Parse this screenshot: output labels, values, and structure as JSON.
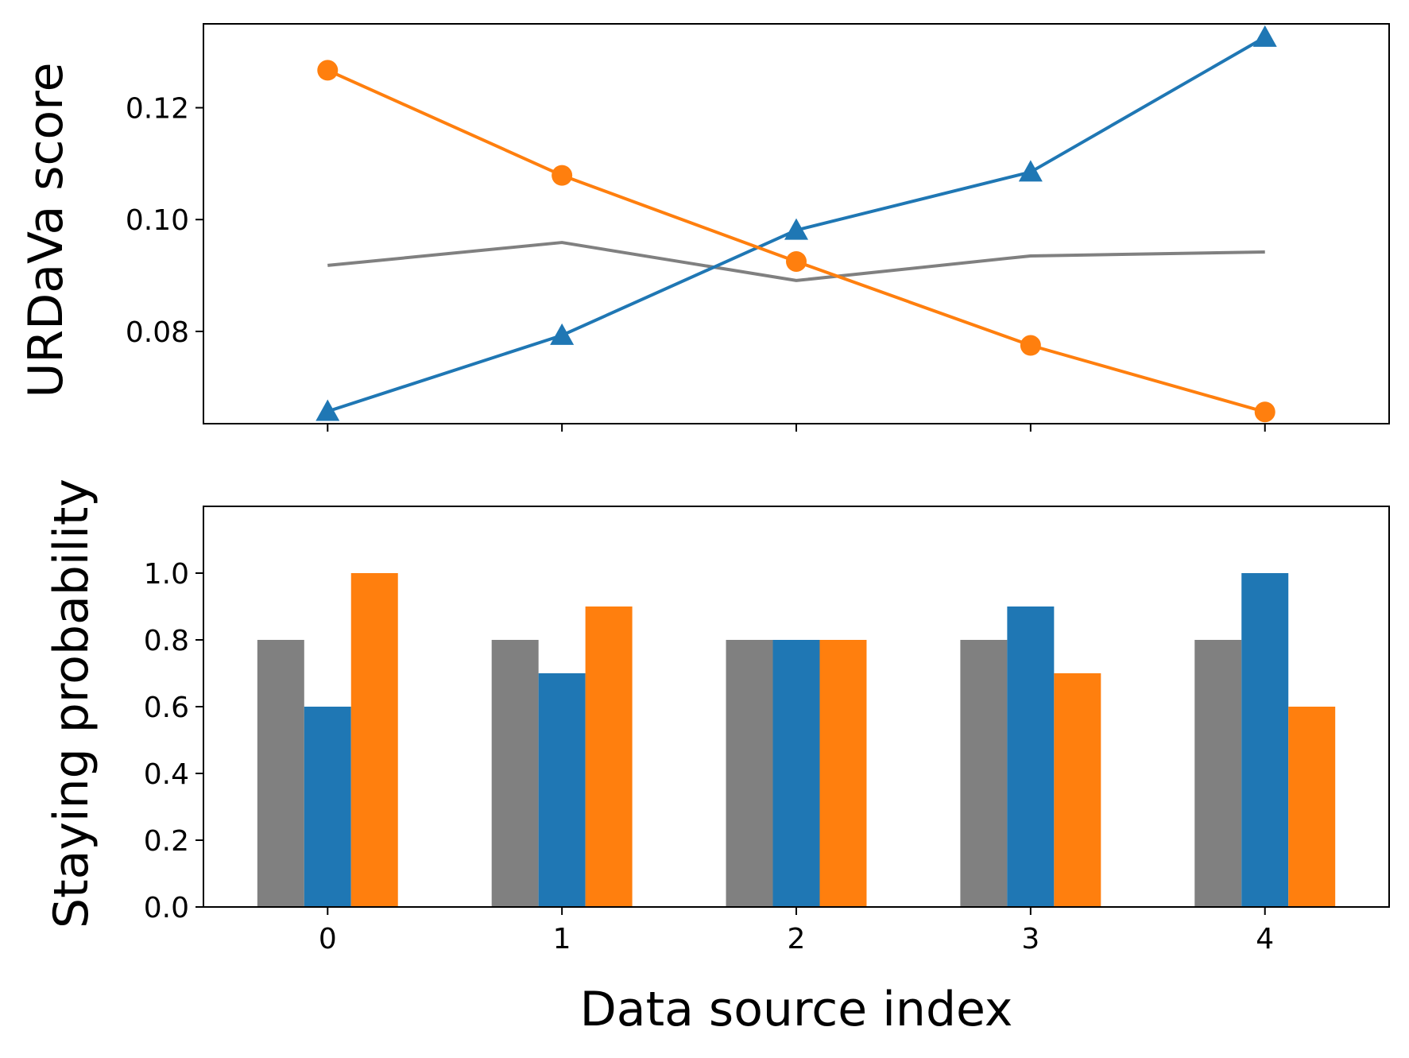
{
  "chart_data": [
    {
      "type": "line",
      "ylabel": "URDaVa score",
      "x": [
        0,
        1,
        2,
        3,
        4
      ],
      "xlim": [
        -0.53,
        4.53
      ],
      "ylim": [
        0.0635,
        0.135
      ],
      "yticks": [
        "0.08",
        "0.10",
        "0.12"
      ],
      "ytick_values": [
        0.08,
        0.1,
        0.12
      ],
      "grid": false,
      "series": [
        {
          "values": [
            0.0918,
            0.0959,
            0.0891,
            0.0935,
            0.0942
          ],
          "color": "#808080",
          "marker": "none"
        },
        {
          "values": [
            0.0657,
            0.0793,
            0.0981,
            0.1085,
            0.1326
          ],
          "color": "#1f77b4",
          "marker": "triangle"
        },
        {
          "values": [
            0.1267,
            0.1079,
            0.0925,
            0.0775,
            0.0656
          ],
          "color": "#ff7f0e",
          "marker": "circle"
        }
      ]
    },
    {
      "type": "bar",
      "ylabel": "Staying probability",
      "xlabel": "Data source index",
      "categories": [
        "0",
        "1",
        "2",
        "3",
        "4"
      ],
      "xlim": [
        -0.53,
        4.53
      ],
      "ylim": [
        0,
        1.2
      ],
      "yticks": [
        "0.0",
        "0.2",
        "0.4",
        "0.6",
        "0.8",
        "1.0"
      ],
      "ytick_values": [
        0,
        0.2,
        0.4,
        0.6,
        0.8,
        1.0
      ],
      "grid": false,
      "bar_width": 0.2,
      "series": [
        {
          "values": [
            0.8,
            0.8,
            0.8,
            0.8,
            0.8
          ],
          "color": "#808080"
        },
        {
          "values": [
            0.6,
            0.7,
            0.8,
            0.9,
            1.0
          ],
          "color": "#1f77b4"
        },
        {
          "values": [
            1.0,
            0.9,
            0.8,
            0.7,
            0.6
          ],
          "color": "#ff7f0e"
        }
      ]
    }
  ]
}
